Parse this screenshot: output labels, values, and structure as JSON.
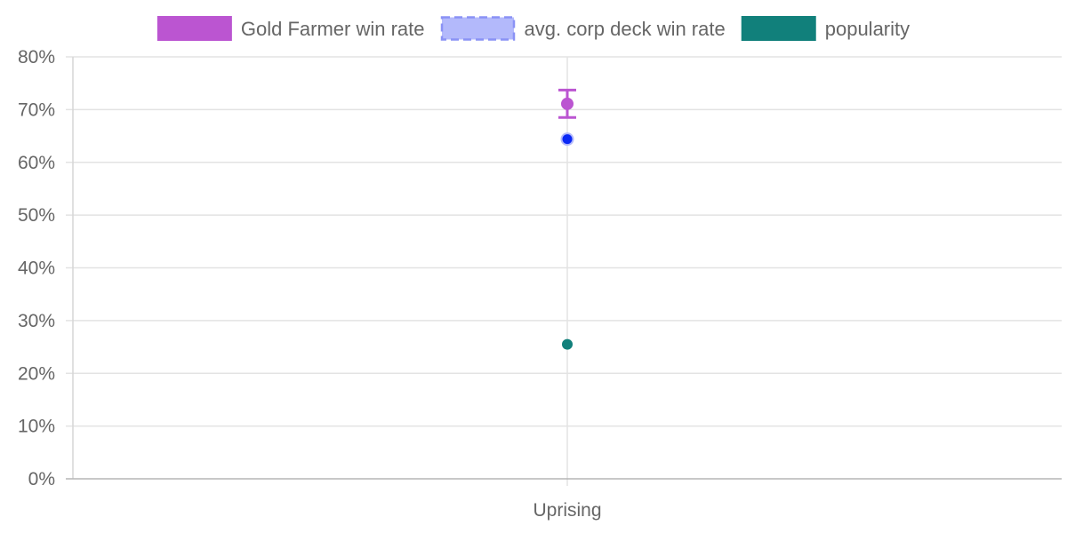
{
  "chart_data": {
    "type": "scatter",
    "title": "",
    "xlabel": "",
    "ylabel": "",
    "categories": [
      "Uprising"
    ],
    "ylim": [
      0,
      80
    ],
    "y_tick_step": 10,
    "y_tick_format": "percent",
    "grid": true,
    "legend_position": "top-center",
    "series": [
      {
        "name": "Gold Farmer win rate",
        "values": [
          71.1
        ],
        "error_low": [
          68.5
        ],
        "error_high": [
          73.7
        ],
        "color": "#bb55d1",
        "style": "solid"
      },
      {
        "name": "avg. corp deck win rate",
        "values": [
          64.4
        ],
        "color": "#0a28f5",
        "legend_color": "#b3b9fb",
        "style": "dashed"
      },
      {
        "name": "popularity",
        "values": [
          25.5
        ],
        "color": "#11807b",
        "style": "solid"
      }
    ]
  }
}
